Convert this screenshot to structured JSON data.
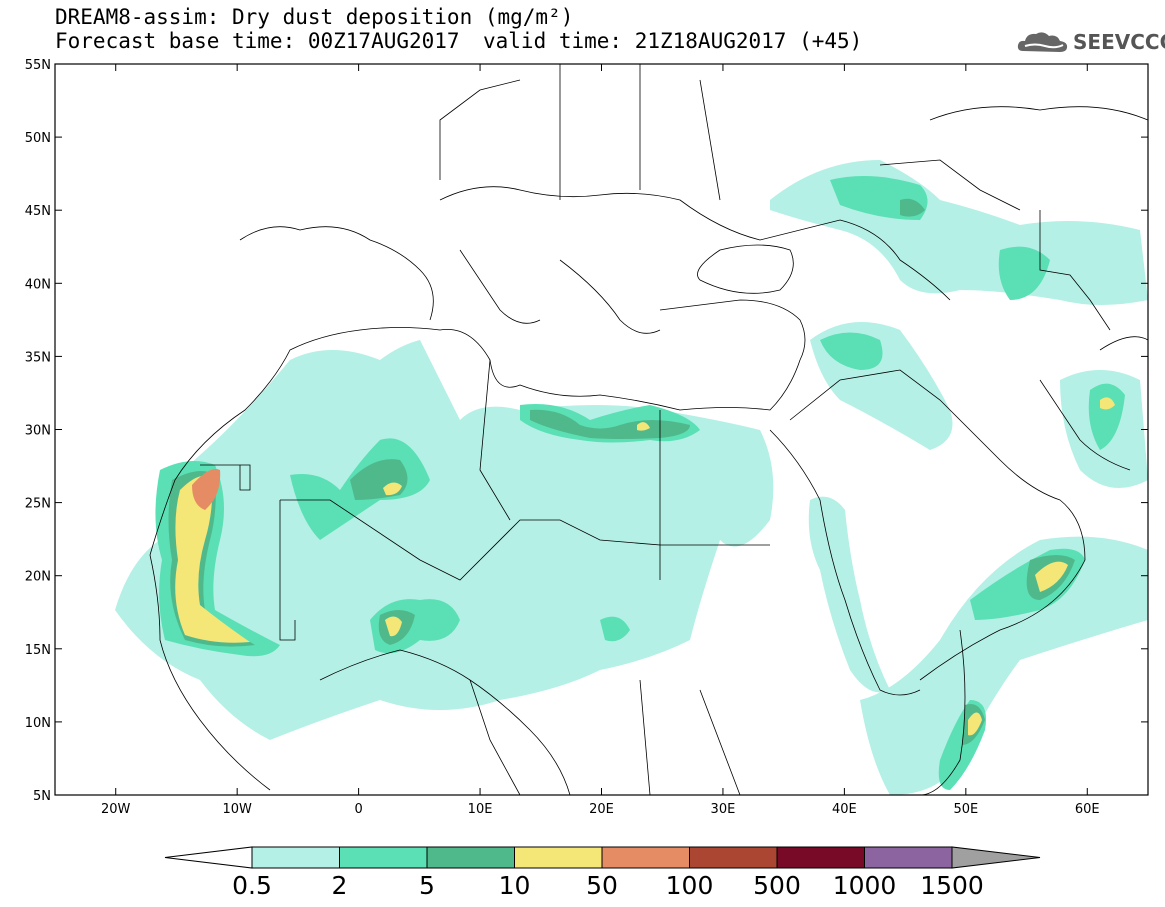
{
  "header": {
    "title": "DREAM8-assim: Dry dust deposition (mg/m²)",
    "base_time": "Forecast base time: 00Z17AUG2017",
    "valid_time": "valid time: 21Z18AUG2017 (+45)",
    "logo_text": "SEEVCCC"
  },
  "map": {
    "lat_labels": [
      "55N",
      "50N",
      "45N",
      "40N",
      "35N",
      "30N",
      "25N",
      "20N",
      "15N",
      "10N",
      "5N"
    ],
    "lon_labels": [
      "20W",
      "10W",
      "0",
      "10E",
      "20E",
      "30E",
      "40E",
      "50E",
      "60E"
    ]
  },
  "colorbar": {
    "labels": [
      "0.5",
      "2",
      "5",
      "10",
      "50",
      "100",
      "500",
      "1000",
      "1500"
    ],
    "colors": [
      "#b4f0e6",
      "#5ae0b4",
      "#50b98c",
      "#f5e678",
      "#e68c64",
      "#aa4632",
      "#780a28",
      "#8c64a0"
    ],
    "under_color": "#ffffff",
    "over_color": "#a0a0a0"
  }
}
